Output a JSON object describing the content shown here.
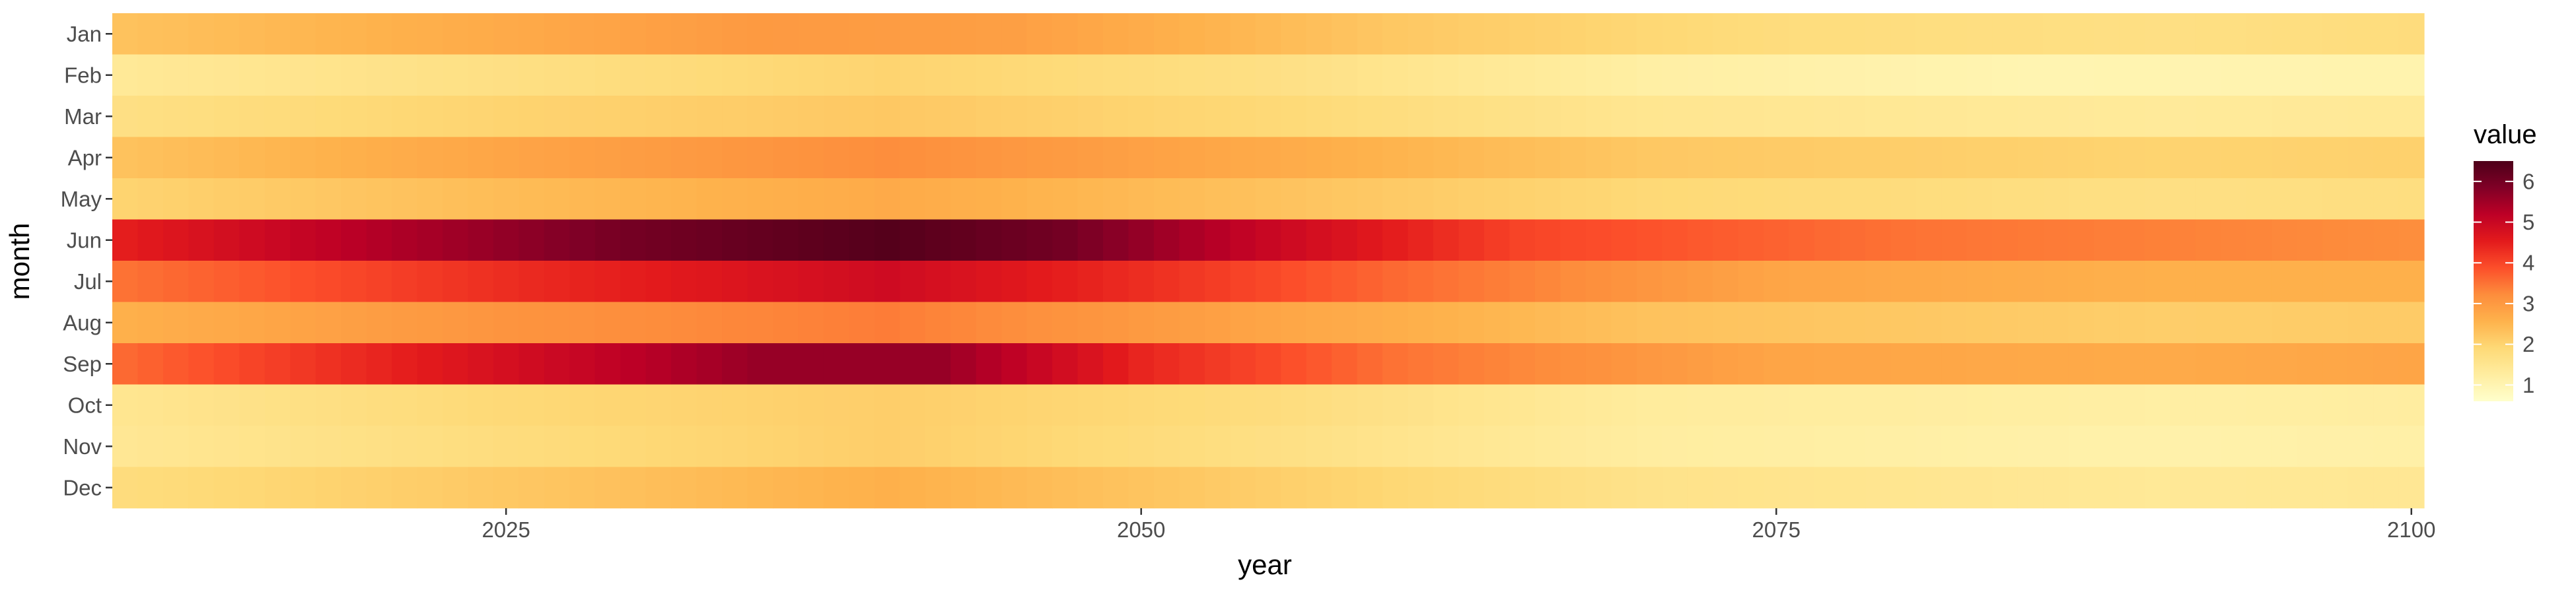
{
  "chart_data": {
    "type": "heatmap",
    "title": "",
    "xlabel": "year",
    "ylabel": "month",
    "legend_title": "value",
    "legend_placement": "right",
    "grid": false,
    "x_ticks": [
      2025,
      2050,
      2075,
      2100
    ],
    "y_categories": [
      "Jan",
      "Feb",
      "Mar",
      "Apr",
      "May",
      "Jun",
      "Jul",
      "Aug",
      "Sep",
      "Oct",
      "Nov",
      "Dec"
    ],
    "years": [
      2010,
      2100
    ],
    "xlim": [
      2009.5,
      2100.5
    ],
    "legend_ticks": [
      1,
      2,
      3,
      4,
      5,
      6
    ],
    "value_range": [
      0.6,
      6.5
    ],
    "palette": [
      "#ffffcc",
      "#ffeda0",
      "#fed976",
      "#feb24c",
      "#fd8d3c",
      "#fc4e2a",
      "#e31a1c",
      "#bd0026",
      "#800026",
      "#4d0019"
    ],
    "series": [
      {
        "name": "Jan",
        "anchors": [
          [
            2010,
            2.3
          ],
          [
            2025,
            2.7
          ],
          [
            2035,
            3.0
          ],
          [
            2045,
            2.9
          ],
          [
            2060,
            2.2
          ],
          [
            2075,
            1.8
          ],
          [
            2090,
            1.7
          ],
          [
            2100,
            1.8
          ]
        ]
      },
      {
        "name": "Feb",
        "anchors": [
          [
            2010,
            1.4
          ],
          [
            2025,
            1.7
          ],
          [
            2040,
            2.0
          ],
          [
            2055,
            1.7
          ],
          [
            2070,
            1.2
          ],
          [
            2085,
            1.0
          ],
          [
            2100,
            1.05
          ]
        ]
      },
      {
        "name": "Mar",
        "anchors": [
          [
            2010,
            1.7
          ],
          [
            2025,
            2.0
          ],
          [
            2040,
            2.2
          ],
          [
            2055,
            1.9
          ],
          [
            2070,
            1.5
          ],
          [
            2090,
            1.35
          ],
          [
            2100,
            1.4
          ]
        ]
      },
      {
        "name": "Apr",
        "anchors": [
          [
            2010,
            2.3
          ],
          [
            2025,
            2.8
          ],
          [
            2040,
            3.2
          ],
          [
            2055,
            2.7
          ],
          [
            2070,
            2.2
          ],
          [
            2090,
            2.0
          ],
          [
            2100,
            2.05
          ]
        ]
      },
      {
        "name": "May",
        "anchors": [
          [
            2010,
            2.0
          ],
          [
            2025,
            2.4
          ],
          [
            2040,
            2.7
          ],
          [
            2055,
            2.3
          ],
          [
            2070,
            1.9
          ],
          [
            2090,
            1.7
          ],
          [
            2100,
            1.75
          ]
        ]
      },
      {
        "name": "Jun",
        "anchors": [
          [
            2010,
            4.5
          ],
          [
            2020,
            5.3
          ],
          [
            2030,
            6.0
          ],
          [
            2040,
            6.4
          ],
          [
            2047,
            6.0
          ],
          [
            2055,
            5.0
          ],
          [
            2065,
            4.0
          ],
          [
            2080,
            3.5
          ],
          [
            2100,
            3.2
          ]
        ]
      },
      {
        "name": "Jul",
        "anchors": [
          [
            2010,
            3.5
          ],
          [
            2025,
            4.3
          ],
          [
            2040,
            4.9
          ],
          [
            2050,
            4.3
          ],
          [
            2060,
            3.6
          ],
          [
            2075,
            2.8
          ],
          [
            2090,
            2.6
          ],
          [
            2100,
            2.6
          ]
        ]
      },
      {
        "name": "Aug",
        "anchors": [
          [
            2010,
            2.6
          ],
          [
            2025,
            3.1
          ],
          [
            2040,
            3.4
          ],
          [
            2055,
            2.8
          ],
          [
            2070,
            2.3
          ],
          [
            2090,
            2.1
          ],
          [
            2100,
            2.15
          ]
        ]
      },
      {
        "name": "Sep",
        "anchors": [
          [
            2010,
            3.6
          ],
          [
            2025,
            4.8
          ],
          [
            2035,
            5.6
          ],
          [
            2042,
            5.6
          ],
          [
            2050,
            4.4
          ],
          [
            2060,
            3.5
          ],
          [
            2075,
            2.8
          ],
          [
            2090,
            2.7
          ],
          [
            2100,
            2.8
          ]
        ]
      },
      {
        "name": "Oct",
        "anchors": [
          [
            2010,
            1.5
          ],
          [
            2025,
            1.9
          ],
          [
            2040,
            2.1
          ],
          [
            2055,
            1.8
          ],
          [
            2070,
            1.3
          ],
          [
            2090,
            1.2
          ],
          [
            2100,
            1.25
          ]
        ]
      },
      {
        "name": "Nov",
        "anchors": [
          [
            2010,
            1.45
          ],
          [
            2025,
            1.8
          ],
          [
            2040,
            2.1
          ],
          [
            2055,
            1.7
          ],
          [
            2070,
            1.25
          ],
          [
            2090,
            1.1
          ],
          [
            2100,
            1.15
          ]
        ]
      },
      {
        "name": "Dec",
        "anchors": [
          [
            2010,
            1.8
          ],
          [
            2025,
            2.2
          ],
          [
            2040,
            2.6
          ],
          [
            2055,
            2.1
          ],
          [
            2070,
            1.6
          ],
          [
            2090,
            1.4
          ],
          [
            2100,
            1.45
          ]
        ]
      }
    ]
  }
}
